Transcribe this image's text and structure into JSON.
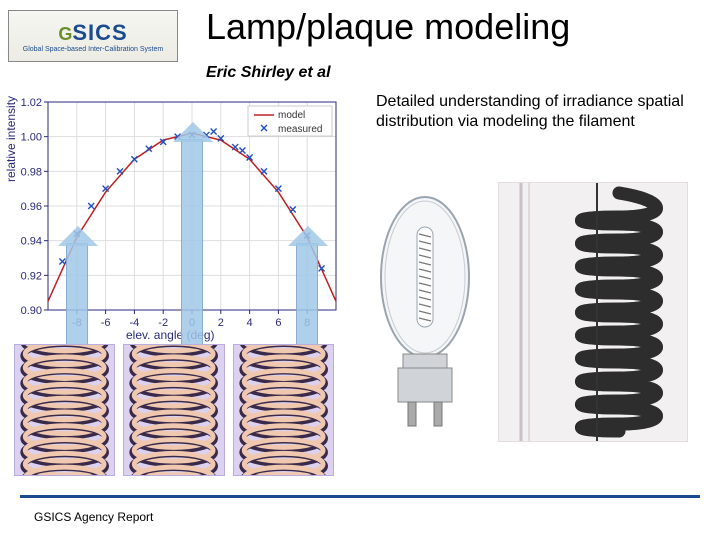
{
  "header": {
    "logo_main": "SICS",
    "logo_sub": "Global Space-based Inter-Calibration System",
    "title": "Lamp/plaque modeling",
    "subtitle": "Eric Shirley et al"
  },
  "description": "Detailed understanding of irradiance spatial distribution via modeling the filament",
  "chart": {
    "type": "scatter+line",
    "xlabel": "elev. angle (deg)",
    "ylabel": "relative intensity",
    "xlim": [
      -10,
      10
    ],
    "ylim": [
      0.9,
      1.02
    ],
    "xtick_step": 2,
    "xticks": [
      -8,
      -6,
      -4,
      -2,
      0,
      2,
      4,
      6,
      8
    ],
    "yticks": [
      0.9,
      0.92,
      0.94,
      0.96,
      0.98,
      1.0,
      1.02
    ],
    "grid_color": "#dddddd",
    "background_color": "#ffffff",
    "axis_color": "#2a2a7a",
    "legend": {
      "items": [
        "model",
        "measured"
      ],
      "position": "top-right"
    },
    "model": {
      "color": "#c02020",
      "linewidth": 1.5,
      "points_x": [
        -10,
        -8,
        -6,
        -4,
        -2,
        0,
        2,
        4,
        6,
        8,
        10
      ],
      "points_y": [
        0.905,
        0.942,
        0.968,
        0.987,
        0.998,
        1.002,
        0.998,
        0.987,
        0.968,
        0.942,
        0.905
      ]
    },
    "measured": {
      "color": "#2050c0",
      "marker": "x",
      "marker_size": 6,
      "points_x": [
        -9,
        -8,
        -7,
        -6,
        -5,
        -4,
        -3,
        -2,
        -1,
        0,
        1,
        1.5,
        2,
        3,
        3.5,
        4,
        5,
        6,
        7,
        8,
        9
      ],
      "points_y": [
        0.928,
        0.944,
        0.96,
        0.97,
        0.98,
        0.987,
        0.993,
        0.997,
        1.0,
        1.001,
        1.001,
        1.003,
        0.999,
        0.994,
        0.992,
        0.988,
        0.98,
        0.97,
        0.958,
        0.943,
        0.924
      ]
    },
    "arrows": {
      "color": "#a4c8e6",
      "positions_x": [
        -8,
        0,
        8
      ]
    }
  },
  "coil_render": {
    "background": "#dcd2f0",
    "coil_color_light": "#f0c8b0",
    "coil_color_dark": "#3a2a4a",
    "count": 3
  },
  "lamp": {
    "bulb_fill": "#f4f6f8",
    "bulb_stroke": "#9aa4ae",
    "base_fill": "#d0d4d8"
  },
  "filament_photo": {
    "background": "#f3f0f2",
    "filament_color": "#1a1a1a",
    "turns": 10
  },
  "footer": {
    "line_color": "#1a4b8f",
    "text": "GSICS Agency Report"
  }
}
